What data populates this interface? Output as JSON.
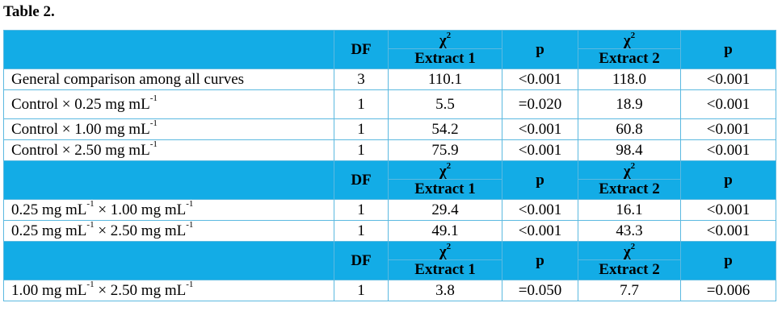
{
  "title": "Table 2.",
  "header": {
    "df": "DF",
    "chi": "χ",
    "chi_exp": "2",
    "extract1": "Extract 1",
    "extract2": "Extract 2",
    "p": "p"
  },
  "sections": [
    {
      "rows": [
        {
          "label": "General comparison among all curves",
          "df": "3",
          "chi1": "110.1",
          "p1": "<0.001",
          "chi2": "118.0",
          "p2": "<0.001"
        },
        {
          "label": "Control × 0.25 mg mL",
          "label_sup": "-1",
          "df": "1",
          "chi1": "5.5",
          "p1": "=0.020",
          "chi2": "18.9",
          "p2": "<0.001"
        },
        {
          "label": "Control × 1.00 mg mL",
          "label_sup": "-1",
          "df": "1",
          "chi1": "54.2",
          "p1": "<0.001",
          "chi2": "60.8",
          "p2": "<0.001"
        },
        {
          "label": "Control × 2.50 mg mL",
          "label_sup": "-1",
          "df": "1",
          "chi1": "75.9",
          "p1": "<0.001",
          "chi2": "98.4",
          "p2": "<0.001"
        }
      ]
    },
    {
      "rows": [
        {
          "label_a": "0.25 mg mL",
          "label_a_sup": "-1",
          "label_b": " × 1.00 mg mL",
          "label_b_sup": "-1",
          "df": "1",
          "chi1": "29.4",
          "p1": "<0.001",
          "chi2": "16.1",
          "p2": "<0.001"
        },
        {
          "label_a": "0.25 mg mL",
          "label_a_sup": "-1",
          "label_b": " × 2.50 mg mL",
          "label_b_sup": "-1",
          "df": "1",
          "chi1": "49.1",
          "p1": "<0.001",
          "chi2": "43.3",
          "p2": "<0.001"
        }
      ]
    },
    {
      "rows": [
        {
          "label_a": "1.00 mg mL",
          "label_a_sup": "-1",
          "label_b": " × 2.50 mg mL",
          "label_b_sup": "-1",
          "df": "1",
          "chi1": "3.8",
          "p1": "=0.050",
          "chi2": "7.7",
          "p2": "=0.006"
        }
      ]
    }
  ],
  "colors": {
    "header_bg": "#13ace6",
    "border": "#5bb9e0"
  }
}
